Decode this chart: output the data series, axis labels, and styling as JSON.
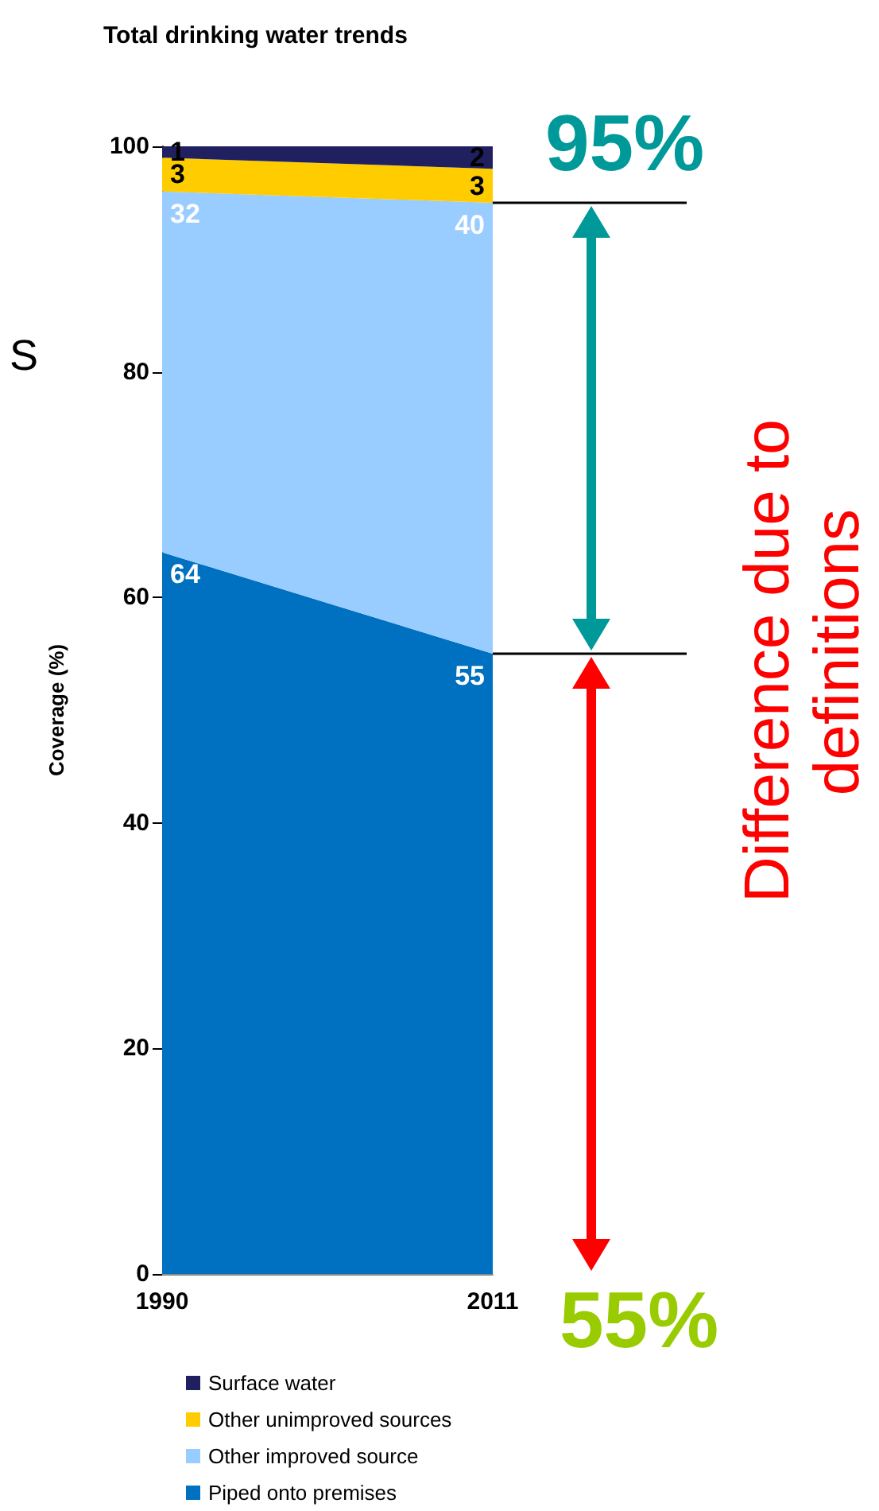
{
  "chart_data": {
    "type": "area",
    "title": "Total drinking water trends",
    "ylabel": "Coverage (%)",
    "categories": [
      "1990",
      "2011"
    ],
    "stacked": true,
    "series": [
      {
        "name": "Piped onto premises",
        "color": "#0070c0",
        "values": [
          64,
          55
        ]
      },
      {
        "name": "Other improved source",
        "color": "#99ccff",
        "values": [
          32,
          40
        ]
      },
      {
        "name": "Other unimproved sources",
        "color": "#ffcc00",
        "values": [
          3,
          3
        ]
      },
      {
        "name": "Surface water",
        "color": "#202060",
        "values": [
          1,
          2
        ]
      }
    ],
    "ylim": [
      0,
      100
    ],
    "yticks": [
      0,
      20,
      40,
      60,
      80,
      100
    ],
    "grid": false,
    "legend": "bottom",
    "data_labels": true,
    "annotations": [
      "95%",
      "55%",
      {
        "text": "Difference due to definitions",
        "x": "2011",
        "y": 55
      },
      "S"
    ]
  }
}
